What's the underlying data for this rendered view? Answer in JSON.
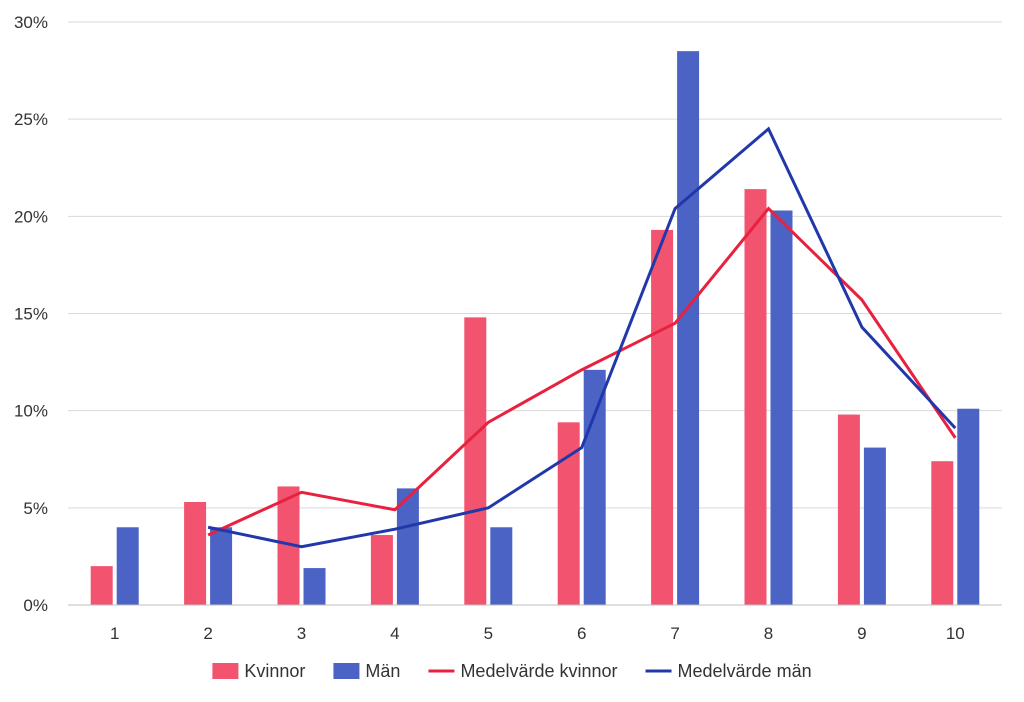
{
  "chart_data": {
    "type": "bar",
    "categories": [
      "1",
      "2",
      "3",
      "4",
      "5",
      "6",
      "7",
      "8",
      "9",
      "10"
    ],
    "series": [
      {
        "name": "Kvinnor",
        "kind": "bar",
        "color": "#f2536e",
        "values": [
          2.0,
          5.3,
          6.1,
          3.6,
          14.8,
          9.4,
          19.3,
          21.4,
          9.8,
          7.4
        ]
      },
      {
        "name": "Män",
        "kind": "bar",
        "color": "#4a63c4",
        "values": [
          4.0,
          4.0,
          1.9,
          6.0,
          4.0,
          12.1,
          28.5,
          20.3,
          8.1,
          10.1
        ]
      },
      {
        "name": "Medelvärde kvinnor",
        "kind": "line",
        "color": "#e8213f",
        "values": [
          null,
          3.6,
          5.8,
          4.9,
          9.4,
          12.1,
          14.5,
          20.4,
          15.7,
          8.6
        ]
      },
      {
        "name": "Medelvärde män",
        "kind": "line",
        "color": "#2238aa",
        "values": [
          null,
          4.0,
          3.0,
          3.9,
          5.0,
          8.1,
          20.4,
          24.5,
          14.3,
          9.1
        ]
      }
    ],
    "yticks": [
      "0%",
      "5%",
      "10%",
      "15%",
      "20%",
      "25%",
      "30%"
    ],
    "ylim": [
      0,
      30
    ],
    "grid": true,
    "legend_position": "bottom",
    "title": "",
    "xlabel": "",
    "ylabel": ""
  }
}
